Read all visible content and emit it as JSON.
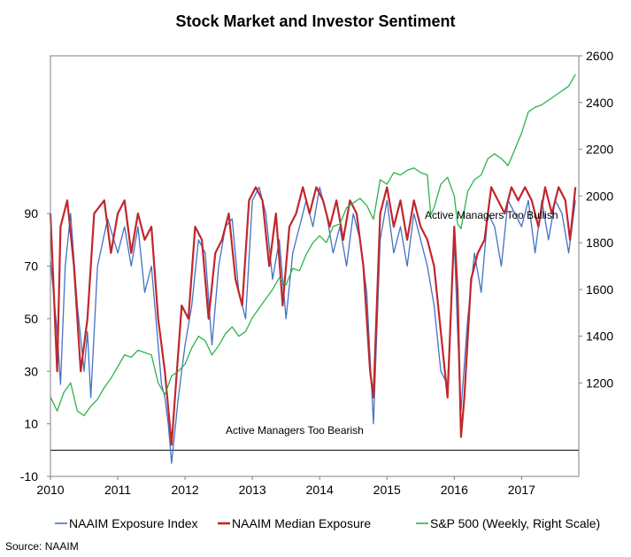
{
  "chart_data": {
    "type": "line",
    "title": "Stock Market and Investor Sentiment",
    "source": "Source: NAAIM",
    "left_axis": {
      "min": -10,
      "max": 150,
      "ticks": [
        "-10",
        "10",
        "30",
        "50",
        "70",
        "90"
      ]
    },
    "right_axis": {
      "min": 800,
      "max": 2600,
      "ticks": [
        "1200",
        "1400",
        "1600",
        "1800",
        "2000",
        "2200",
        "2400",
        "2600"
      ]
    },
    "x_axis": {
      "min": 2010,
      "max": 2017.85,
      "ticks": [
        "2010",
        "2011",
        "2012",
        "2013",
        "2014",
        "2015",
        "2016",
        "2017"
      ]
    },
    "annotations": [
      "Active Managers Too Bullish",
      "Active Managers Too Bearish"
    ],
    "legend": {
      "placement": "bottom"
    },
    "series": [
      {
        "name": "NAAIM Exposure Index",
        "axis": "left",
        "color": "#4472C4",
        "points": [
          [
            2010.0,
            72
          ],
          [
            2010.1,
            45
          ],
          [
            2010.15,
            25
          ],
          [
            2010.22,
            70
          ],
          [
            2010.3,
            90
          ],
          [
            2010.4,
            55
          ],
          [
            2010.5,
            30
          ],
          [
            2010.55,
            45
          ],
          [
            2010.6,
            20
          ],
          [
            2010.7,
            70
          ],
          [
            2010.85,
            88
          ],
          [
            2011.0,
            75
          ],
          [
            2011.1,
            85
          ],
          [
            2011.2,
            70
          ],
          [
            2011.3,
            85
          ],
          [
            2011.4,
            60
          ],
          [
            2011.5,
            70
          ],
          [
            2011.6,
            40
          ],
          [
            2011.65,
            25
          ],
          [
            2011.7,
            20
          ],
          [
            2011.75,
            10
          ],
          [
            2011.8,
            -5
          ],
          [
            2011.9,
            20
          ],
          [
            2012.0,
            40
          ],
          [
            2012.1,
            55
          ],
          [
            2012.2,
            80
          ],
          [
            2012.3,
            75
          ],
          [
            2012.4,
            40
          ],
          [
            2012.5,
            70
          ],
          [
            2012.6,
            85
          ],
          [
            2012.7,
            88
          ],
          [
            2012.8,
            60
          ],
          [
            2012.9,
            50
          ],
          [
            2013.0,
            95
          ],
          [
            2013.1,
            100
          ],
          [
            2013.2,
            90
          ],
          [
            2013.3,
            65
          ],
          [
            2013.4,
            80
          ],
          [
            2013.5,
            50
          ],
          [
            2013.6,
            75
          ],
          [
            2013.7,
            85
          ],
          [
            2013.8,
            95
          ],
          [
            2013.9,
            85
          ],
          [
            2014.0,
            100
          ],
          [
            2014.1,
            90
          ],
          [
            2014.2,
            75
          ],
          [
            2014.3,
            85
          ],
          [
            2014.4,
            70
          ],
          [
            2014.5,
            90
          ],
          [
            2014.6,
            80
          ],
          [
            2014.7,
            60
          ],
          [
            2014.8,
            10
          ],
          [
            2014.9,
            80
          ],
          [
            2015.0,
            95
          ],
          [
            2015.1,
            75
          ],
          [
            2015.2,
            85
          ],
          [
            2015.3,
            70
          ],
          [
            2015.4,
            90
          ],
          [
            2015.5,
            80
          ],
          [
            2015.6,
            70
          ],
          [
            2015.7,
            55
          ],
          [
            2015.8,
            30
          ],
          [
            2015.9,
            25
          ],
          [
            2016.0,
            80
          ],
          [
            2016.05,
            45
          ],
          [
            2016.1,
            15
          ],
          [
            2016.2,
            50
          ],
          [
            2016.3,
            75
          ],
          [
            2016.4,
            60
          ],
          [
            2016.5,
            90
          ],
          [
            2016.6,
            85
          ],
          [
            2016.7,
            70
          ],
          [
            2016.8,
            95
          ],
          [
            2016.9,
            90
          ],
          [
            2017.0,
            85
          ],
          [
            2017.1,
            95
          ],
          [
            2017.2,
            75
          ],
          [
            2017.3,
            95
          ],
          [
            2017.4,
            80
          ],
          [
            2017.5,
            95
          ],
          [
            2017.6,
            90
          ],
          [
            2017.7,
            75
          ],
          [
            2017.75,
            85
          ],
          [
            2017.8,
            95
          ]
        ]
      },
      {
        "name": "NAAIM Median Exposure",
        "axis": "left",
        "color": "#C0272D",
        "points": [
          [
            2010.0,
            90
          ],
          [
            2010.05,
            60
          ],
          [
            2010.1,
            30
          ],
          [
            2010.15,
            85
          ],
          [
            2010.25,
            95
          ],
          [
            2010.35,
            70
          ],
          [
            2010.45,
            30
          ],
          [
            2010.55,
            50
          ],
          [
            2010.65,
            90
          ],
          [
            2010.8,
            95
          ],
          [
            2010.9,
            75
          ],
          [
            2011.0,
            90
          ],
          [
            2011.1,
            95
          ],
          [
            2011.2,
            75
          ],
          [
            2011.3,
            90
          ],
          [
            2011.4,
            80
          ],
          [
            2011.5,
            85
          ],
          [
            2011.6,
            50
          ],
          [
            2011.7,
            30
          ],
          [
            2011.8,
            2
          ],
          [
            2011.85,
            20
          ],
          [
            2011.95,
            55
          ],
          [
            2012.05,
            50
          ],
          [
            2012.15,
            85
          ],
          [
            2012.25,
            80
          ],
          [
            2012.35,
            50
          ],
          [
            2012.45,
            75
          ],
          [
            2012.55,
            80
          ],
          [
            2012.65,
            90
          ],
          [
            2012.75,
            65
          ],
          [
            2012.85,
            55
          ],
          [
            2012.95,
            95
          ],
          [
            2013.05,
            100
          ],
          [
            2013.15,
            95
          ],
          [
            2013.25,
            70
          ],
          [
            2013.35,
            90
          ],
          [
            2013.45,
            55
          ],
          [
            2013.55,
            85
          ],
          [
            2013.65,
            90
          ],
          [
            2013.75,
            100
          ],
          [
            2013.85,
            90
          ],
          [
            2013.95,
            100
          ],
          [
            2014.05,
            95
          ],
          [
            2014.15,
            85
          ],
          [
            2014.25,
            95
          ],
          [
            2014.35,
            80
          ],
          [
            2014.45,
            95
          ],
          [
            2014.55,
            90
          ],
          [
            2014.65,
            70
          ],
          [
            2014.75,
            30
          ],
          [
            2014.8,
            20
          ],
          [
            2014.9,
            90
          ],
          [
            2015.0,
            100
          ],
          [
            2015.1,
            85
          ],
          [
            2015.2,
            95
          ],
          [
            2015.3,
            80
          ],
          [
            2015.4,
            95
          ],
          [
            2015.5,
            85
          ],
          [
            2015.6,
            80
          ],
          [
            2015.7,
            70
          ],
          [
            2015.8,
            45
          ],
          [
            2015.9,
            20
          ],
          [
            2016.0,
            85
          ],
          [
            2016.05,
            60
          ],
          [
            2016.1,
            5
          ],
          [
            2016.15,
            20
          ],
          [
            2016.25,
            65
          ],
          [
            2016.35,
            75
          ],
          [
            2016.45,
            80
          ],
          [
            2016.55,
            100
          ],
          [
            2016.65,
            95
          ],
          [
            2016.75,
            90
          ],
          [
            2016.85,
            100
          ],
          [
            2016.95,
            95
          ],
          [
            2017.05,
            100
          ],
          [
            2017.15,
            95
          ],
          [
            2017.25,
            85
          ],
          [
            2017.35,
            100
          ],
          [
            2017.45,
            90
          ],
          [
            2017.55,
            100
          ],
          [
            2017.65,
            95
          ],
          [
            2017.72,
            80
          ],
          [
            2017.8,
            100
          ]
        ]
      },
      {
        "name": "S&P 500 (Weekly, Right Scale)",
        "axis": "right",
        "color": "#2DB34A",
        "points": [
          [
            2010.0,
            1140
          ],
          [
            2010.1,
            1080
          ],
          [
            2010.2,
            1160
          ],
          [
            2010.3,
            1200
          ],
          [
            2010.4,
            1080
          ],
          [
            2010.5,
            1060
          ],
          [
            2010.6,
            1100
          ],
          [
            2010.7,
            1130
          ],
          [
            2010.8,
            1180
          ],
          [
            2010.9,
            1220
          ],
          [
            2011.0,
            1270
          ],
          [
            2011.1,
            1320
          ],
          [
            2011.2,
            1310
          ],
          [
            2011.3,
            1340
          ],
          [
            2011.4,
            1330
          ],
          [
            2011.5,
            1320
          ],
          [
            2011.6,
            1200
          ],
          [
            2011.7,
            1150
          ],
          [
            2011.8,
            1230
          ],
          [
            2011.9,
            1250
          ],
          [
            2012.0,
            1280
          ],
          [
            2012.1,
            1350
          ],
          [
            2012.2,
            1400
          ],
          [
            2012.3,
            1380
          ],
          [
            2012.4,
            1320
          ],
          [
            2012.5,
            1360
          ],
          [
            2012.6,
            1410
          ],
          [
            2012.7,
            1440
          ],
          [
            2012.8,
            1400
          ],
          [
            2012.9,
            1420
          ],
          [
            2013.0,
            1480
          ],
          [
            2013.1,
            1520
          ],
          [
            2013.2,
            1560
          ],
          [
            2013.3,
            1600
          ],
          [
            2013.4,
            1650
          ],
          [
            2013.5,
            1620
          ],
          [
            2013.6,
            1690
          ],
          [
            2013.7,
            1680
          ],
          [
            2013.8,
            1750
          ],
          [
            2013.9,
            1800
          ],
          [
            2014.0,
            1830
          ],
          [
            2014.1,
            1800
          ],
          [
            2014.2,
            1870
          ],
          [
            2014.3,
            1880
          ],
          [
            2014.4,
            1950
          ],
          [
            2014.5,
            1970
          ],
          [
            2014.6,
            1990
          ],
          [
            2014.7,
            1960
          ],
          [
            2014.8,
            1900
          ],
          [
            2014.9,
            2070
          ],
          [
            2015.0,
            2050
          ],
          [
            2015.1,
            2100
          ],
          [
            2015.2,
            2090
          ],
          [
            2015.3,
            2110
          ],
          [
            2015.4,
            2120
          ],
          [
            2015.5,
            2100
          ],
          [
            2015.6,
            2090
          ],
          [
            2015.65,
            1920
          ],
          [
            2015.7,
            1950
          ],
          [
            2015.8,
            2050
          ],
          [
            2015.9,
            2080
          ],
          [
            2016.0,
            2000
          ],
          [
            2016.05,
            1880
          ],
          [
            2016.1,
            1860
          ],
          [
            2016.2,
            2020
          ],
          [
            2016.3,
            2070
          ],
          [
            2016.4,
            2090
          ],
          [
            2016.5,
            2160
          ],
          [
            2016.6,
            2180
          ],
          [
            2016.7,
            2160
          ],
          [
            2016.8,
            2130
          ],
          [
            2016.9,
            2200
          ],
          [
            2017.0,
            2270
          ],
          [
            2017.1,
            2360
          ],
          [
            2017.2,
            2380
          ],
          [
            2017.3,
            2390
          ],
          [
            2017.4,
            2410
          ],
          [
            2017.5,
            2430
          ],
          [
            2017.6,
            2450
          ],
          [
            2017.7,
            2470
          ],
          [
            2017.8,
            2520
          ]
        ]
      }
    ]
  }
}
